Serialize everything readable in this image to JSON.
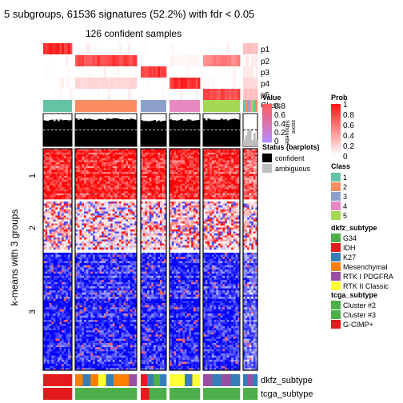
{
  "title": "5 subgroups, 61536 signatures (52.2%) with fdr < 0.05",
  "subtitle": "126 confident samples",
  "ylabel": "k-means with 3 groups",
  "row_groups": [
    "1",
    "2",
    "3"
  ],
  "prob_rows": [
    "p1",
    "p2",
    "p3",
    "p4",
    "p5"
  ],
  "class_label": "Class",
  "silhouette_label": "Silhouette\nscore",
  "bottom_tracks": [
    "dkfz_subtype",
    "tcga_subtype"
  ],
  "colors": {
    "class": {
      "1": "#66C2A5",
      "2": "#FC8D62",
      "3": "#8DA0CB",
      "4": "#E78AC3",
      "5": "#A6D854"
    },
    "dkfz": {
      "G34": "#4DAF4A",
      "IDH": "#E41A1C",
      "K27": "#377EB8",
      "Mesenchymal": "#FF7F00",
      "RTK I PDGFRA": "#984EA3",
      "RTK II Classic": "#FFFF33"
    },
    "tcga": {
      "Cluster #2": "#4DAF4A",
      "Cluster #3": "#4DAF4A",
      "G-CIMP+": "#E41A1C"
    },
    "status": {
      "confident": "#000000",
      "ambiguous": "#BEBEBE"
    },
    "heat_high": "#FF0000",
    "heat_mid": "#FFFFFF",
    "heat_low": "#0000FF"
  },
  "legends": {
    "prob": {
      "title": "Prob",
      "ticks": [
        "1",
        "0.8",
        "0.6",
        "0.4",
        "0.2",
        "0"
      ]
    },
    "silhouette": {
      "title": "Value",
      "ticks": [
        "0.8",
        "0.6",
        "0.4",
        "0.2",
        "0"
      ]
    },
    "status": {
      "title": "Status (barplots)",
      "items": [
        "confident",
        "ambiguous"
      ]
    },
    "class": {
      "title": "Class",
      "items": [
        "1",
        "2",
        "3",
        "4",
        "5"
      ]
    },
    "dkfz": {
      "title": "dkfz_subtype",
      "items": [
        "G34",
        "IDH",
        "K27",
        "Mesenchymal",
        "RTK I PDGFRA",
        "RTK II Classic"
      ]
    },
    "tcga": {
      "title": "tcga_subtype",
      "items": [
        "Cluster #2",
        "Cluster #3",
        "G-CIMP+"
      ]
    }
  },
  "chart_data": {
    "type": "heatmap",
    "title": "5 subgroups, 61536 signatures (52.2%) with fdr < 0.05",
    "subtitle": "126 confident samples",
    "ylabel": "k-means with 3 groups",
    "column_groups": [
      "1",
      "2",
      "3",
      "4",
      "5",
      "ambiguous"
    ],
    "column_group_sizes": [
      14,
      28,
      12,
      14,
      17,
      7
    ],
    "row_groups": [
      "1",
      "2",
      "3"
    ],
    "row_group_sizes": [
      62,
      60,
      150
    ],
    "membership_probability": {
      "p1": [
        1,
        0,
        0,
        0,
        0,
        0.3
      ],
      "p2": [
        0,
        0.9,
        0,
        0.05,
        0.6,
        0.1
      ],
      "p3": [
        0,
        0,
        1,
        0,
        0,
        0.1
      ],
      "p4": [
        0,
        0.2,
        0,
        1,
        0,
        0.2
      ],
      "p5": [
        0,
        0,
        0,
        0,
        0.9,
        0.3
      ]
    },
    "silhouette_mean_by_group": [
      0.82,
      0.86,
      0.8,
      0.83,
      0.85,
      0.3
    ],
    "silhouette_ylim": [
      0,
      1
    ],
    "silhouette_reference": 0.5,
    "heat_scale": [
      "low",
      "mid",
      "high"
    ]
  }
}
